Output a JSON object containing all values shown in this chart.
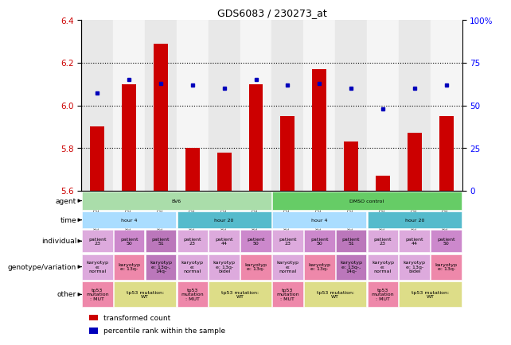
{
  "title": "GDS6083 / 230273_at",
  "samples": [
    "GSM1528449",
    "GSM1528455",
    "GSM1528457",
    "GSM1528447",
    "GSM1528451",
    "GSM1528453",
    "GSM1528450",
    "GSM1528456",
    "GSM1528458",
    "GSM1528448",
    "GSM1528452",
    "GSM1528454"
  ],
  "bar_values": [
    5.9,
    6.1,
    6.29,
    5.8,
    5.78,
    6.1,
    5.95,
    6.17,
    5.83,
    5.67,
    5.87,
    5.95
  ],
  "dot_values": [
    57,
    65,
    63,
    62,
    60,
    65,
    62,
    63,
    60,
    48,
    60,
    62
  ],
  "ylim": [
    5.6,
    6.4
  ],
  "y2lim": [
    0,
    100
  ],
  "yticks": [
    5.6,
    5.8,
    6.0,
    6.2,
    6.4
  ],
  "y2ticks": [
    0,
    25,
    50,
    75,
    100
  ],
  "y2ticklabels": [
    "0",
    "25",
    "50",
    "75",
    "100%"
  ],
  "bar_color": "#cc0000",
  "dot_color": "#0000bb",
  "bar_bottom": 5.6,
  "agent_groups": [
    {
      "text": "BV6",
      "cols": 6,
      "color": "#aaddaa"
    },
    {
      "text": "DMSO control",
      "cols": 6,
      "color": "#66cc66"
    }
  ],
  "time_groups": [
    {
      "text": "hour 4",
      "cols": 3,
      "color": "#aaddff"
    },
    {
      "text": "hour 20",
      "cols": 3,
      "color": "#55bbcc"
    },
    {
      "text": "hour 4",
      "cols": 3,
      "color": "#aaddff"
    },
    {
      "text": "hour 20",
      "cols": 3,
      "color": "#55bbcc"
    }
  ],
  "individual_cells": [
    {
      "text": "patient\n23",
      "color": "#ddaadd"
    },
    {
      "text": "patient\n50",
      "color": "#cc88cc"
    },
    {
      "text": "patient\n51",
      "color": "#bb77bb"
    },
    {
      "text": "patient\n23",
      "color": "#ddaadd"
    },
    {
      "text": "patient\n44",
      "color": "#ddaadd"
    },
    {
      "text": "patient\n50",
      "color": "#cc88cc"
    },
    {
      "text": "patient\n23",
      "color": "#ddaadd"
    },
    {
      "text": "patient\n50",
      "color": "#cc88cc"
    },
    {
      "text": "patient\n51",
      "color": "#bb77bb"
    },
    {
      "text": "patient\n23",
      "color": "#ddaadd"
    },
    {
      "text": "patient\n44",
      "color": "#ddaadd"
    },
    {
      "text": "patient\n50",
      "color": "#cc88cc"
    }
  ],
  "genotype_cells": [
    {
      "text": "karyotyp\ne:\nnormal",
      "color": "#ddaadd"
    },
    {
      "text": "karyotyp\ne: 13q-",
      "color": "#ee88aa"
    },
    {
      "text": "karyotyp\ne: 13q-,\n14q-",
      "color": "#bb77bb"
    },
    {
      "text": "karyotyp\ne:\nnormal",
      "color": "#ddaadd"
    },
    {
      "text": "karyotyp\ne: 13q-\nbidel",
      "color": "#ddaadd"
    },
    {
      "text": "karyotyp\ne: 13q-",
      "color": "#ee88aa"
    },
    {
      "text": "karyotyp\ne:\nnormal",
      "color": "#ddaadd"
    },
    {
      "text": "karyotyp\ne: 13q-",
      "color": "#ee88aa"
    },
    {
      "text": "karyotyp\ne: 13q-,\n14q-",
      "color": "#bb77bb"
    },
    {
      "text": "karyotyp\ne:\nnormal",
      "color": "#ddaadd"
    },
    {
      "text": "karyotyp\ne: 13q-\nbidel",
      "color": "#ddaadd"
    },
    {
      "text": "karyotyp\ne: 13q-",
      "color": "#ee88aa"
    }
  ],
  "other_groups": [
    {
      "text": "tp53\nmutation\n: MUT",
      "cols": 1,
      "color": "#ee88aa"
    },
    {
      "text": "tp53 mutation:\nWT",
      "cols": 2,
      "color": "#dddd88"
    },
    {
      "text": "tp53\nmutation\n: MUT",
      "cols": 1,
      "color": "#ee88aa"
    },
    {
      "text": "tp53 mutation:\nWT",
      "cols": 2,
      "color": "#dddd88"
    },
    {
      "text": "tp53\nmutation\n: MUT",
      "cols": 1,
      "color": "#ee88aa"
    },
    {
      "text": "tp53 mutation:\nWT",
      "cols": 2,
      "color": "#dddd88"
    },
    {
      "text": "tp53\nmutation\n: MUT",
      "cols": 1,
      "color": "#ee88aa"
    },
    {
      "text": "tp53 mutation:\nWT",
      "cols": 2,
      "color": "#dddd88"
    }
  ],
  "row_labels": [
    "agent",
    "time",
    "individual",
    "genotype/variation",
    "other"
  ],
  "legend": [
    {
      "label": "transformed count",
      "color": "#cc0000"
    },
    {
      "label": "percentile rank within the sample",
      "color": "#0000bb"
    }
  ]
}
